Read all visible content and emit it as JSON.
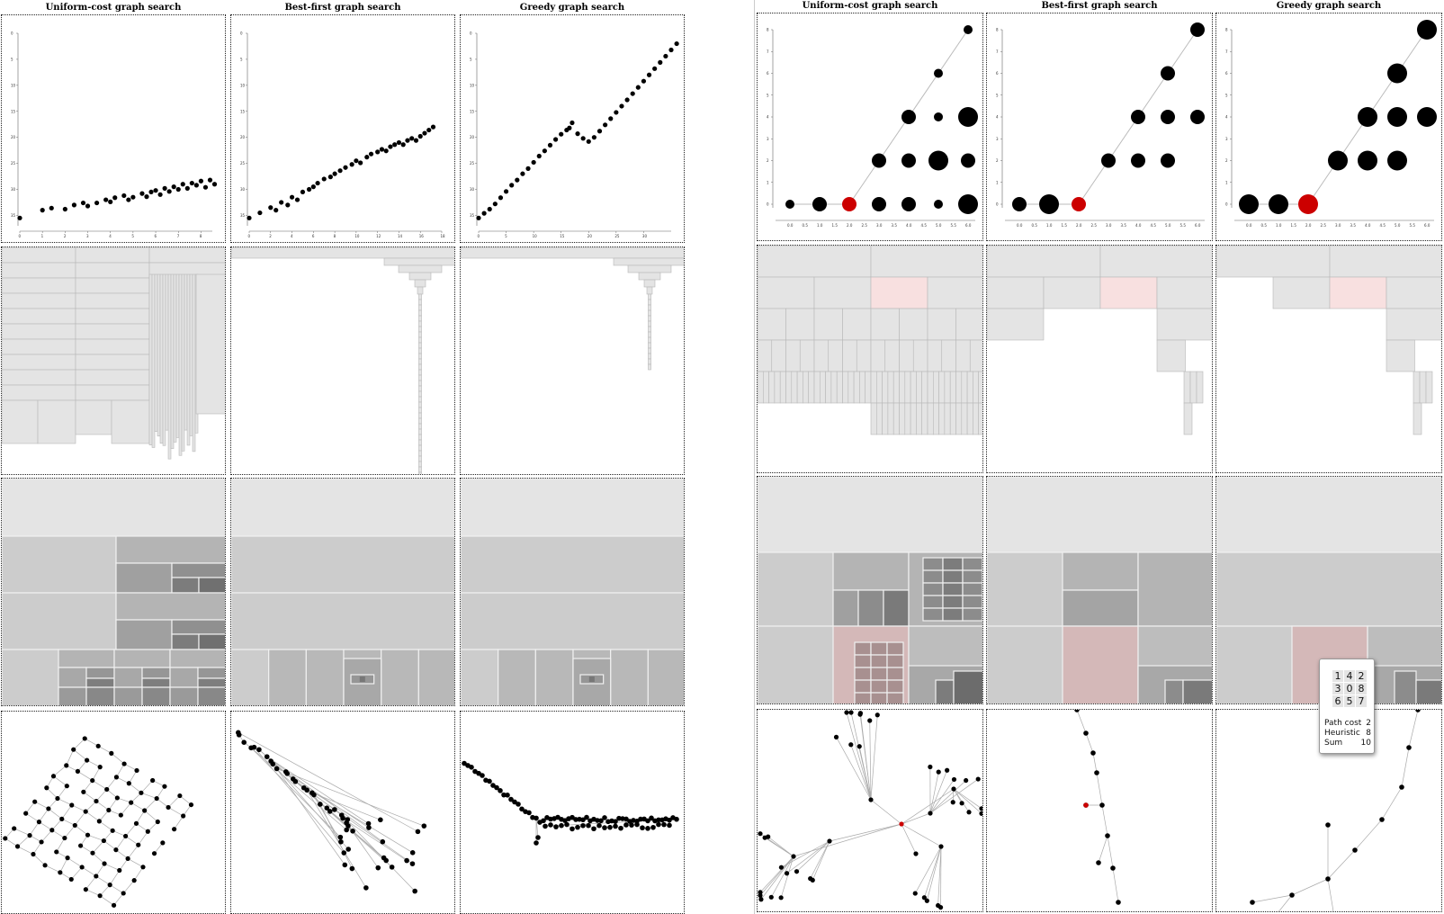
{
  "columns": [
    "Uniform-cost graph search",
    "Best-first graph search",
    "Greedy graph search"
  ],
  "left_panel": {
    "scatter_y_ticks": [
      "0",
      "5",
      "10",
      "15",
      "20",
      "25",
      "30",
      "35"
    ],
    "scatter_x_ticks": [
      [
        "0",
        "1",
        "2",
        "3",
        "4",
        "5",
        "6",
        "7",
        "8"
      ],
      [
        "0",
        "2",
        "4",
        "6",
        "8",
        "10",
        "12",
        "14",
        "16",
        "18"
      ],
      [
        "0",
        "5",
        "10",
        "15",
        "20",
        "25",
        "30"
      ]
    ]
  },
  "right_panel": {
    "scatter_y_ticks": [
      "0",
      "1",
      "2",
      "3",
      "4",
      "5",
      "6",
      "7",
      "8"
    ],
    "scatter_x_ticks": [
      "0.0",
      "0.5",
      "1.0",
      "1.5",
      "2.0",
      "2.5",
      "3.0",
      "3.5",
      "4.0",
      "4.5",
      "5.0",
      "5.5",
      "6.0"
    ]
  },
  "tooltip": {
    "puzzle": [
      "1",
      "4",
      "2",
      "3",
      "0",
      "8",
      "6",
      "5",
      "7"
    ],
    "rows": [
      {
        "label": "Path cost",
        "value": "2"
      },
      {
        "label": "Heuristic",
        "value": "8"
      },
      {
        "label": "Sum",
        "value": "10"
      }
    ]
  },
  "colors": {
    "highlight": "#cc0000",
    "node": "#000000",
    "edge": "#bbbbbb"
  },
  "chart_data": [
    {
      "type": "scatter",
      "panel": "left",
      "column": "Uniform-cost graph search",
      "xlim": [
        0,
        8.5
      ],
      "ylim": [
        0,
        37
      ],
      "points": [
        [
          0,
          35.5
        ],
        [
          1,
          34
        ],
        [
          1.4,
          33.6
        ],
        [
          2,
          33.8
        ],
        [
          2.4,
          33
        ],
        [
          2.8,
          32.6
        ],
        [
          3,
          33.2
        ],
        [
          3.4,
          32.6
        ],
        [
          3.8,
          32
        ],
        [
          4,
          32.4
        ],
        [
          4.2,
          31.6
        ],
        [
          4.6,
          31.2
        ],
        [
          4.8,
          32
        ],
        [
          5,
          31.5
        ],
        [
          5.4,
          30.8
        ],
        [
          5.6,
          31.4
        ],
        [
          5.8,
          30.5
        ],
        [
          6,
          30.2
        ],
        [
          6.2,
          31
        ],
        [
          6.4,
          29.8
        ],
        [
          6.6,
          30.4
        ],
        [
          6.8,
          29.5
        ],
        [
          7,
          30
        ],
        [
          7.2,
          29
        ],
        [
          7.4,
          29.8
        ],
        [
          7.6,
          28.8
        ],
        [
          7.8,
          29.2
        ],
        [
          8,
          28.4
        ],
        [
          8.2,
          29.6
        ],
        [
          8.4,
          28.2
        ],
        [
          8.6,
          29
        ]
      ]
    },
    {
      "type": "scatter",
      "panel": "left",
      "column": "Best-first graph search",
      "xlim": [
        0,
        18
      ],
      "ylim": [
        0,
        37
      ],
      "points": [
        [
          0,
          35.5
        ],
        [
          1,
          34.5
        ],
        [
          2,
          33.5
        ],
        [
          2.5,
          34
        ],
        [
          3,
          32.5
        ],
        [
          3.6,
          33
        ],
        [
          4,
          31.5
        ],
        [
          4.5,
          32
        ],
        [
          5,
          30.5
        ],
        [
          5.6,
          30
        ],
        [
          6,
          29.5
        ],
        [
          6.4,
          28.8
        ],
        [
          7,
          28
        ],
        [
          7.6,
          27.6
        ],
        [
          8,
          27
        ],
        [
          8.5,
          26.4
        ],
        [
          9,
          25.8
        ],
        [
          9.6,
          25.2
        ],
        [
          10,
          24.5
        ],
        [
          10.4,
          24.9
        ],
        [
          11,
          23.8
        ],
        [
          11.4,
          23.2
        ],
        [
          12,
          22.8
        ],
        [
          12.4,
          22.3
        ],
        [
          12.8,
          22.6
        ],
        [
          13.2,
          21.8
        ],
        [
          13.6,
          21.4
        ],
        [
          14,
          21
        ],
        [
          14.4,
          21.4
        ],
        [
          14.8,
          20.6
        ],
        [
          15.2,
          20.2
        ],
        [
          15.6,
          20.6
        ],
        [
          16,
          19.8
        ],
        [
          16.4,
          19.2
        ],
        [
          16.8,
          18.6
        ],
        [
          17.2,
          18
        ]
      ]
    },
    {
      "type": "scatter",
      "panel": "left",
      "column": "Greedy graph search",
      "xlim": [
        0,
        35
      ],
      "ylim": [
        0,
        37
      ],
      "points": [
        [
          0,
          35.5
        ],
        [
          1,
          34.6
        ],
        [
          2,
          33.8
        ],
        [
          3,
          32.8
        ],
        [
          4,
          31.6
        ],
        [
          5,
          30.4
        ],
        [
          6,
          29.2
        ],
        [
          7,
          28.2
        ],
        [
          8,
          27
        ],
        [
          9,
          26
        ],
        [
          10,
          24.8
        ],
        [
          11,
          23.6
        ],
        [
          12,
          22.6
        ],
        [
          13,
          21.5
        ],
        [
          14,
          20.4
        ],
        [
          15,
          19.4
        ],
        [
          16,
          18.6
        ],
        [
          16.5,
          18.2
        ],
        [
          17,
          17.2
        ],
        [
          18,
          19.3
        ],
        [
          19,
          20.2
        ],
        [
          20,
          20.8
        ],
        [
          21,
          20
        ],
        [
          22,
          18.8
        ],
        [
          23,
          17.6
        ],
        [
          24,
          16.4
        ],
        [
          25,
          15.2
        ],
        [
          26,
          14
        ],
        [
          27,
          12.8
        ],
        [
          28,
          11.6
        ],
        [
          29,
          10.4
        ],
        [
          30,
          9.2
        ],
        [
          31,
          8
        ],
        [
          32,
          6.8
        ],
        [
          33,
          5.6
        ],
        [
          34,
          4.4
        ],
        [
          35,
          3.2
        ],
        [
          36,
          2
        ]
      ]
    },
    {
      "type": "scatter",
      "panel": "right",
      "column": "Uniform-cost graph search",
      "xlim": [
        0,
        6
      ],
      "ylim": [
        0,
        8
      ],
      "points": [
        [
          0,
          0,
          "s"
        ],
        [
          1,
          0,
          "m"
        ],
        [
          2,
          0,
          "m",
          "red"
        ],
        [
          3,
          0,
          "m"
        ],
        [
          4,
          0,
          "m"
        ],
        [
          5,
          0,
          "s"
        ],
        [
          6,
          0,
          "l"
        ],
        [
          3,
          2,
          "m"
        ],
        [
          4,
          2,
          "m"
        ],
        [
          5,
          2,
          "l"
        ],
        [
          6,
          2,
          "m"
        ],
        [
          4,
          4,
          "m"
        ],
        [
          5,
          4,
          "s"
        ],
        [
          6,
          4,
          "l"
        ],
        [
          5,
          6,
          "s"
        ],
        [
          6,
          8,
          "s"
        ]
      ]
    },
    {
      "type": "scatter",
      "panel": "right",
      "column": "Best-first graph search",
      "xlim": [
        0,
        6
      ],
      "ylim": [
        0,
        8
      ],
      "points": [
        [
          0,
          0,
          "m"
        ],
        [
          1,
          0,
          "l"
        ],
        [
          2,
          0,
          "m",
          "red"
        ],
        [
          3,
          2,
          "m"
        ],
        [
          4,
          2,
          "m"
        ],
        [
          5,
          2,
          "m"
        ],
        [
          4,
          4,
          "m"
        ],
        [
          5,
          4,
          "m"
        ],
        [
          6,
          4,
          "m"
        ],
        [
          5,
          6,
          "m"
        ],
        [
          6,
          8,
          "m"
        ]
      ]
    },
    {
      "type": "scatter",
      "panel": "right",
      "column": "Greedy graph search",
      "xlim": [
        0,
        6
      ],
      "ylim": [
        0,
        8
      ],
      "points": [
        [
          0,
          0,
          "l"
        ],
        [
          1,
          0,
          "l"
        ],
        [
          2,
          0,
          "l",
          "red"
        ],
        [
          3,
          2,
          "l"
        ],
        [
          4,
          2,
          "l"
        ],
        [
          5,
          2,
          "l"
        ],
        [
          4,
          4,
          "l"
        ],
        [
          5,
          4,
          "l"
        ],
        [
          6,
          4,
          "l"
        ],
        [
          5,
          6,
          "l"
        ],
        [
          6,
          8,
          "l"
        ]
      ]
    }
  ]
}
